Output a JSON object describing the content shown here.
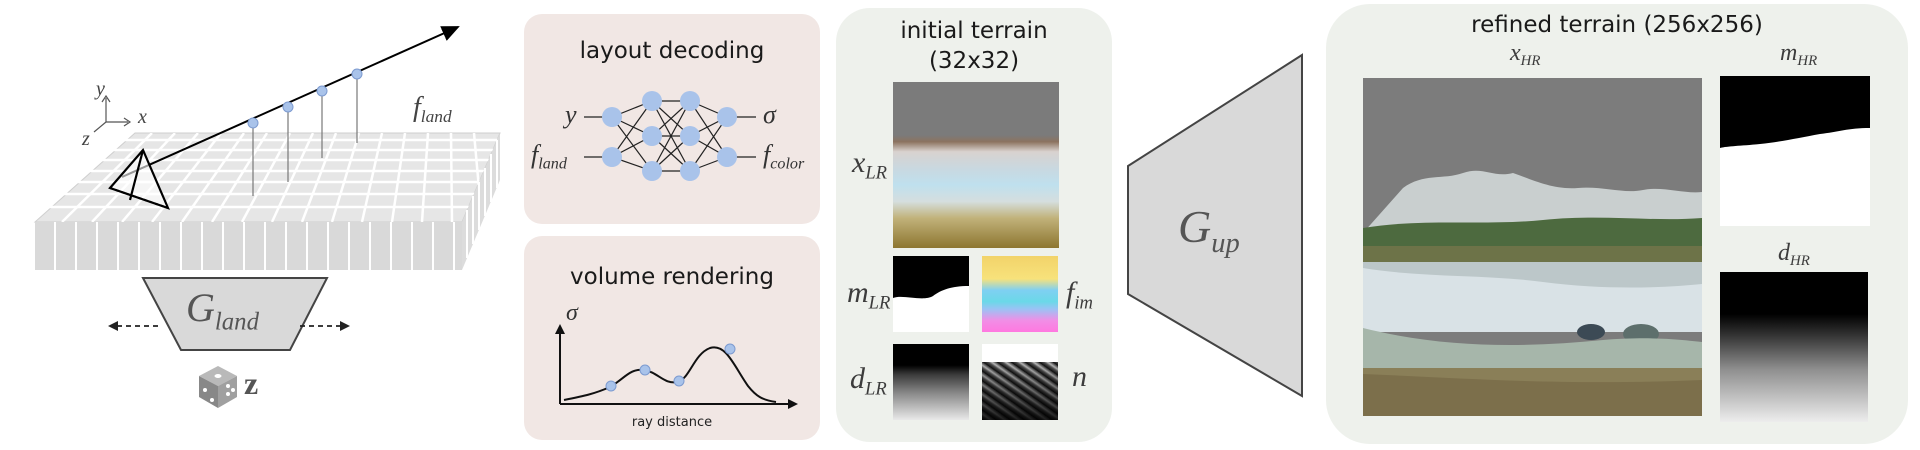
{
  "left": {
    "axis_y": "y",
    "axis_x": "x",
    "axis_z": "z",
    "f_land_base": "f",
    "f_land_sub": "land",
    "g_land_base": "G",
    "g_land_sub": "land",
    "z_label": "z"
  },
  "layout_decoding": {
    "title": "layout decoding",
    "in_y": "y",
    "in_f_base": "f",
    "in_f_sub": "land",
    "out_sigma": "σ",
    "out_f_base": "f",
    "out_f_sub": "color"
  },
  "volume_rendering": {
    "title": "volume rendering",
    "y_label": "σ",
    "x_label": "ray distance"
  },
  "initial_terrain": {
    "title_line1": "initial terrain",
    "title_line2": "(32x32)",
    "x_base": "x",
    "x_sub": "LR",
    "m_base": "m",
    "m_sub": "LR",
    "f_base": "f",
    "f_sub": "im",
    "d_base": "d",
    "d_sub": "LR",
    "n_label": "n"
  },
  "upsampler": {
    "base": "G",
    "sub": "up"
  },
  "refined_terrain": {
    "title": "refined terrain (256x256)",
    "x_base": "x",
    "x_sub": "HR",
    "m_base": "m",
    "m_sub": "HR",
    "d_base": "d",
    "d_sub": "HR"
  }
}
